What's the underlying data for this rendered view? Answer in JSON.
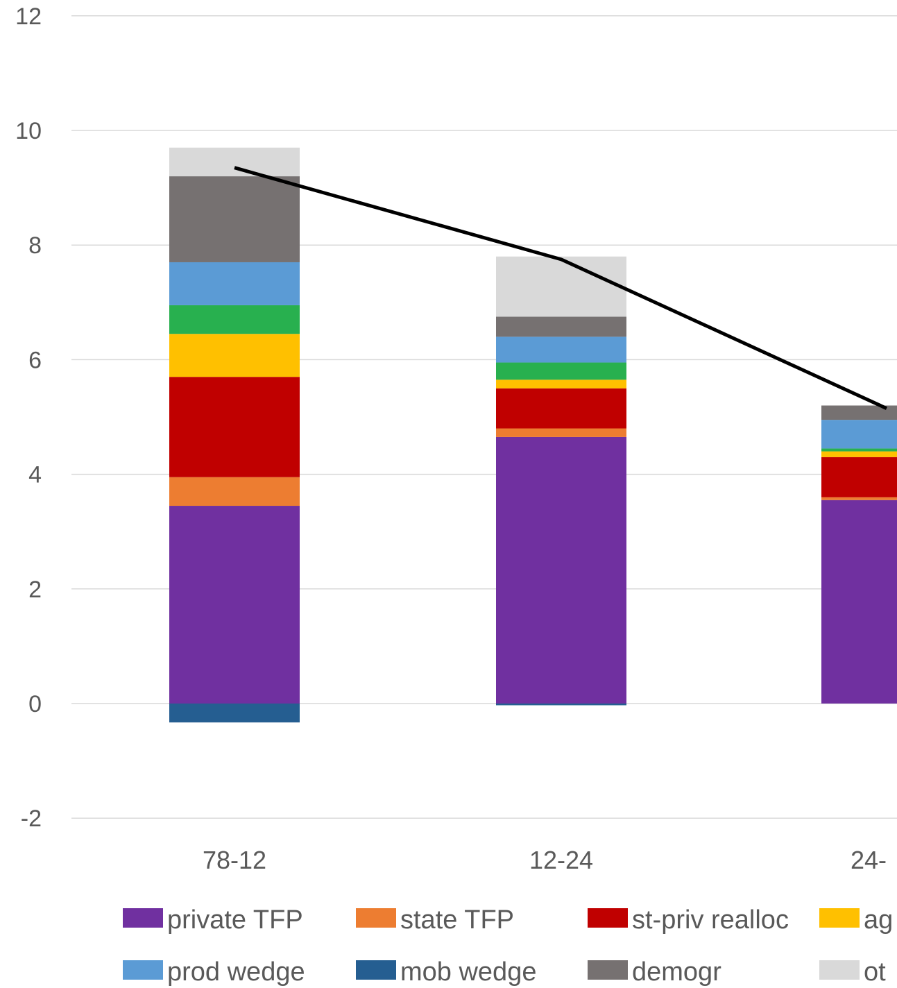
{
  "chart_data": {
    "type": "bar",
    "stacked": true,
    "categories": [
      "78-12",
      "12-24",
      "24-"
    ],
    "ylim": [
      -2,
      12
    ],
    "yticks": [
      -2,
      0,
      2,
      4,
      6,
      8,
      10,
      12
    ],
    "grid": true,
    "legend_position": "bottom",
    "series": [
      {
        "name": "private TFP",
        "legend_label": "private TFP",
        "color": "#7030a0",
        "values": [
          3.45,
          4.65,
          3.55
        ]
      },
      {
        "name": "state TFP",
        "legend_label": "state TFP",
        "color": "#ed7d31",
        "values": [
          0.5,
          0.15,
          0.05
        ]
      },
      {
        "name": "st-priv realloc",
        "legend_label": "st-priv realloc",
        "color": "#c00000",
        "values": [
          1.75,
          0.7,
          0.7
        ]
      },
      {
        "name": "ag",
        "legend_label": "ag",
        "color": "#ffc000",
        "values": [
          0.75,
          0.15,
          0.1
        ]
      },
      {
        "name": "",
        "legend_label": "",
        "color": "#28b04f",
        "values": [
          0.5,
          0.3,
          0.05
        ]
      },
      {
        "name": "prod wedge",
        "legend_label": "prod wedge",
        "color": "#5b9bd5",
        "values": [
          0.75,
          0.45,
          0.5
        ]
      },
      {
        "name": "mob wedge",
        "legend_label": "mob wedge",
        "color": "#255e91",
        "values": [
          -0.33,
          -0.03,
          0
        ]
      },
      {
        "name": "demogr",
        "legend_label": "demogr",
        "color": "#767171",
        "values": [
          1.5,
          0.35,
          0.25
        ]
      },
      {
        "name": "ot",
        "legend_label": "ot",
        "color": "#d9d9d9",
        "values": [
          0.5,
          1.05,
          0
        ]
      }
    ],
    "line": {
      "color": "#000000",
      "values": [
        9.35,
        7.75,
        5.15
      ]
    }
  }
}
